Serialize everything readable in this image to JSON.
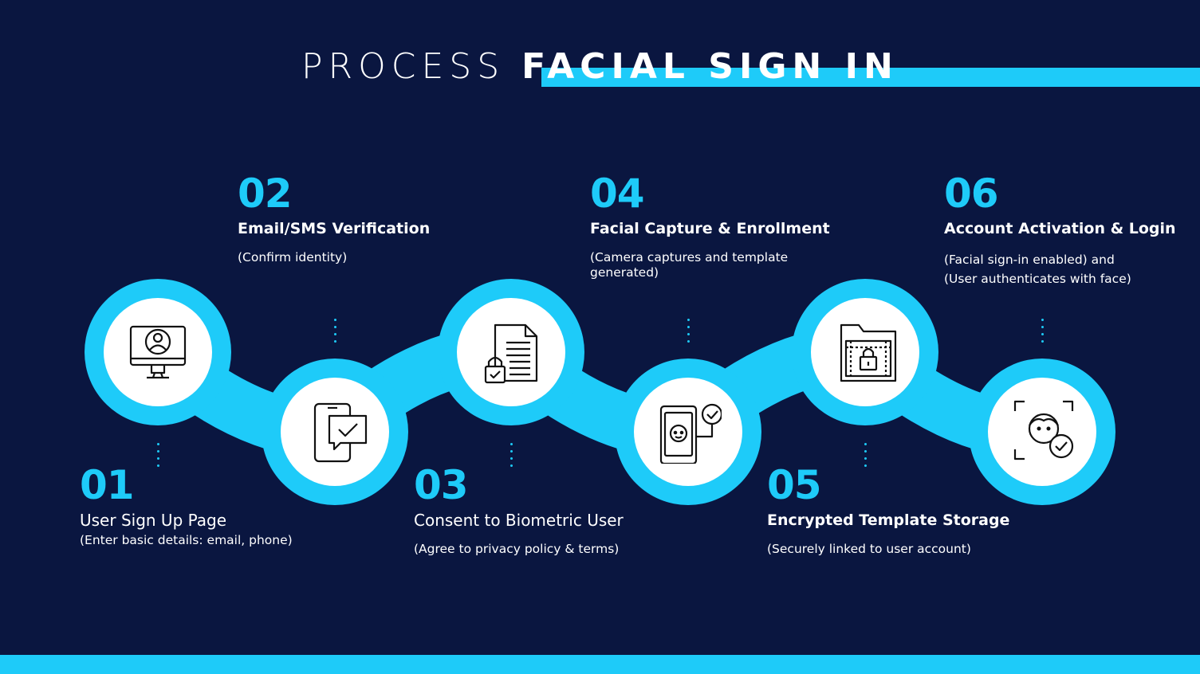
{
  "title": {
    "light": "PROCESS",
    "bold": "FACIAL SIGN IN"
  },
  "colors": {
    "background": "#0a1640",
    "accent": "#1ecbf9",
    "text": "#ffffff"
  },
  "steps": [
    {
      "num": "01",
      "title": "User Sign Up Page",
      "desc": "(Enter basic details: email, phone)",
      "icon": "user-monitor-icon"
    },
    {
      "num": "02",
      "title": "Email/SMS Verification",
      "desc": "(Confirm identity)",
      "icon": "phone-chat-check-icon"
    },
    {
      "num": "03",
      "title": "Consent to Biometric User",
      "desc": "(Agree to privacy policy & terms)",
      "icon": "document-lock-icon"
    },
    {
      "num": "04",
      "title": "Facial Capture & Enrollment",
      "desc": "(Camera captures and template generated)",
      "icon": "phone-face-scan-icon"
    },
    {
      "num": "05",
      "title": "Encrypted Template Storage",
      "desc": "(Securely linked to user account)",
      "icon": "folder-lock-icon"
    },
    {
      "num": "06",
      "title": "Account Activation & Login",
      "desc": "(Facial sign-in enabled) and\n(User authenticates with face)",
      "icon": "face-verified-icon"
    }
  ]
}
